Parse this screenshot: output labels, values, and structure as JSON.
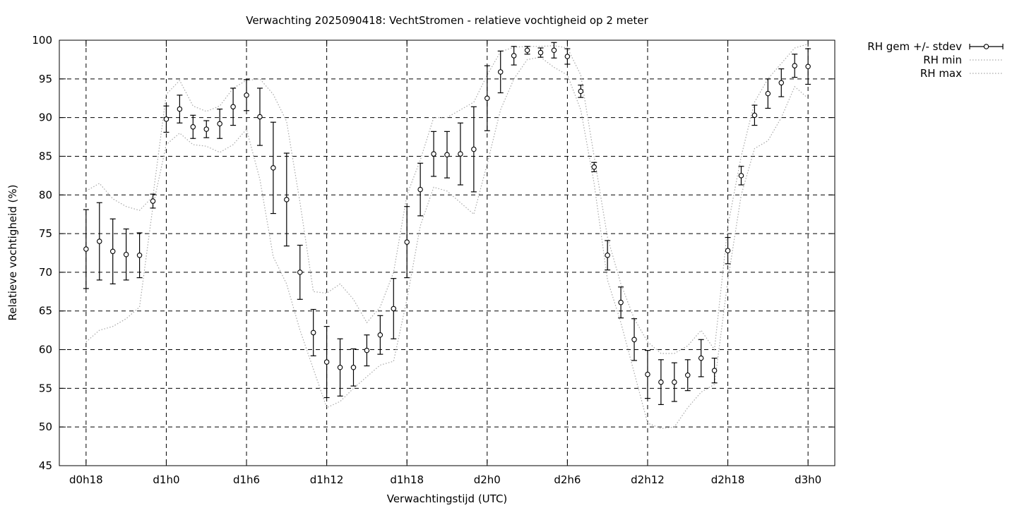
{
  "chart_data": {
    "type": "line",
    "title": "Verwachting 2025090418: VechtStromen - relatieve vochtigheid op 2 meter",
    "xlabel": "Verwachtingstijd (UTC)",
    "ylabel": "Relatieve vochtigheid (%)",
    "ylim": [
      45,
      100
    ],
    "yticks": [
      45,
      50,
      55,
      60,
      65,
      70,
      75,
      80,
      85,
      90,
      95,
      100
    ],
    "xlim_hours": [
      16,
      74
    ],
    "xticks": [
      {
        "hour": 18,
        "label": "d0h18"
      },
      {
        "hour": 24,
        "label": "d1h0"
      },
      {
        "hour": 30,
        "label": "d1h6"
      },
      {
        "hour": 36,
        "label": "d1h12"
      },
      {
        "hour": 42,
        "label": "d1h18"
      },
      {
        "hour": 48,
        "label": "d2h0"
      },
      {
        "hour": 54,
        "label": "d2h6"
      },
      {
        "hour": 60,
        "label": "d2h12"
      },
      {
        "hour": 66,
        "label": "d2h18"
      },
      {
        "hour": 72,
        "label": "d3h0"
      }
    ],
    "grid": true,
    "legend_position": "outside-top-right",
    "legend": [
      "RH gem +/- stdev",
      "RH min",
      "RH max"
    ],
    "series": [
      {
        "name": "RH gem +/- stdev",
        "style": "points-errorbars",
        "x": [
          18,
          19,
          20,
          21,
          22,
          23,
          24,
          25,
          26,
          27,
          28,
          29,
          30,
          31,
          32,
          33,
          34,
          35,
          36,
          37,
          38,
          39,
          40,
          41,
          42,
          43,
          44,
          45,
          46,
          47,
          48,
          49,
          50,
          51,
          52,
          53,
          54,
          55,
          56,
          57,
          58,
          59,
          60,
          61,
          62,
          63,
          64,
          65,
          66,
          67,
          68,
          69,
          70,
          71,
          72
        ],
        "y": [
          73.0,
          74.0,
          72.7,
          72.3,
          72.2,
          79.2,
          89.8,
          91.1,
          88.8,
          88.5,
          89.2,
          91.4,
          92.9,
          90.1,
          83.5,
          79.4,
          70.0,
          62.2,
          58.4,
          57.7,
          57.7,
          59.9,
          61.9,
          65.3,
          73.9,
          80.7,
          85.3,
          85.2,
          85.3,
          85.9,
          92.5,
          95.9,
          98.0,
          98.7,
          98.4,
          98.7,
          97.9,
          93.4,
          83.6,
          72.2,
          66.1,
          61.3,
          56.8,
          55.8,
          55.8,
          56.7,
          58.9,
          57.3,
          72.8,
          82.5,
          90.3,
          93.1,
          94.5,
          96.7,
          96.6
        ],
        "stdev": [
          5.1,
          5.0,
          4.2,
          3.3,
          2.9,
          0.9,
          1.7,
          1.8,
          1.5,
          1.1,
          1.9,
          2.4,
          2.0,
          3.7,
          5.9,
          6.0,
          3.5,
          3.0,
          4.6,
          3.7,
          2.4,
          2.0,
          2.5,
          3.9,
          4.6,
          3.4,
          2.9,
          3.0,
          4.0,
          5.5,
          4.2,
          2.7,
          1.2,
          0.5,
          0.6,
          1.0,
          1.0,
          0.8,
          0.6,
          1.9,
          2.0,
          2.7,
          3.1,
          2.9,
          2.5,
          2.0,
          2.4,
          1.6,
          1.7,
          1.2,
          1.3,
          1.9,
          1.8,
          1.5,
          2.3
        ]
      },
      {
        "name": "RH min",
        "style": "dotted",
        "x": [
          18,
          19,
          20,
          21,
          22,
          23,
          24,
          25,
          26,
          27,
          28,
          29,
          30,
          31,
          32,
          33,
          34,
          35,
          36,
          37,
          38,
          39,
          40,
          41,
          42,
          43,
          44,
          45,
          46,
          47,
          48,
          49,
          50,
          51,
          52,
          53,
          54,
          55,
          56,
          57,
          58,
          59,
          60,
          61,
          62,
          63,
          64,
          65,
          66,
          67,
          68,
          69,
          70,
          71,
          72
        ],
        "y": [
          61.0,
          62.5,
          63.0,
          64.0,
          65.5,
          78.5,
          86.5,
          88.0,
          86.5,
          86.3,
          85.5,
          86.5,
          88.5,
          82.0,
          72.0,
          68.5,
          62.5,
          57.5,
          52.5,
          53.3,
          55.0,
          56.5,
          58.0,
          58.5,
          66.5,
          76.0,
          81.0,
          80.5,
          79.0,
          77.5,
          84.0,
          91.0,
          95.0,
          97.5,
          97.8,
          96.5,
          95.5,
          91.0,
          81.5,
          69.0,
          63.5,
          57.0,
          50.5,
          49.8,
          50.0,
          52.5,
          54.5,
          55.5,
          69.0,
          80.0,
          86.0,
          87.0,
          90.0,
          94.0,
          92.5
        ]
      },
      {
        "name": "RH max",
        "style": "dotted",
        "x": [
          18,
          19,
          20,
          21,
          22,
          23,
          24,
          25,
          26,
          27,
          28,
          29,
          30,
          31,
          32,
          33,
          34,
          35,
          36,
          37,
          38,
          39,
          40,
          41,
          42,
          43,
          44,
          45,
          46,
          47,
          48,
          49,
          50,
          51,
          52,
          53,
          54,
          55,
          56,
          57,
          58,
          59,
          60,
          61,
          62,
          63,
          64,
          65,
          66,
          67,
          68,
          69,
          70,
          71,
          72
        ],
        "y": [
          80.5,
          81.5,
          79.5,
          78.5,
          78.0,
          79.8,
          93.0,
          94.8,
          91.5,
          90.8,
          91.5,
          93.8,
          94.8,
          95.0,
          93.0,
          89.5,
          79.0,
          67.5,
          67.3,
          68.5,
          66.5,
          63.5,
          65.5,
          70.0,
          80.0,
          84.5,
          90.0,
          90.0,
          91.0,
          92.0,
          95.5,
          98.5,
          99.1,
          99.2,
          99.2,
          99.3,
          99.0,
          95.5,
          85.0,
          74.5,
          68.5,
          64.0,
          61.0,
          59.5,
          59.5,
          60.5,
          62.5,
          60.0,
          76.0,
          85.0,
          92.0,
          95.0,
          97.0,
          99.0,
          99.5
        ]
      }
    ]
  }
}
